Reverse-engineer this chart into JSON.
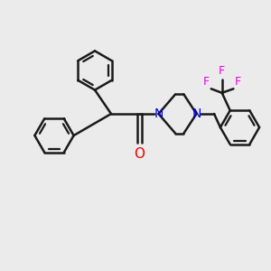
{
  "bg_color": "#ebebeb",
  "bond_color": "#1a1a1a",
  "nitrogen_color": "#0000ee",
  "oxygen_color": "#ee0000",
  "fluorine_color": "#ee00ee",
  "line_width": 1.8,
  "fig_size": [
    3.0,
    3.0
  ],
  "dpi": 100,
  "xlim": [
    0,
    10
  ],
  "ylim": [
    0,
    10
  ]
}
